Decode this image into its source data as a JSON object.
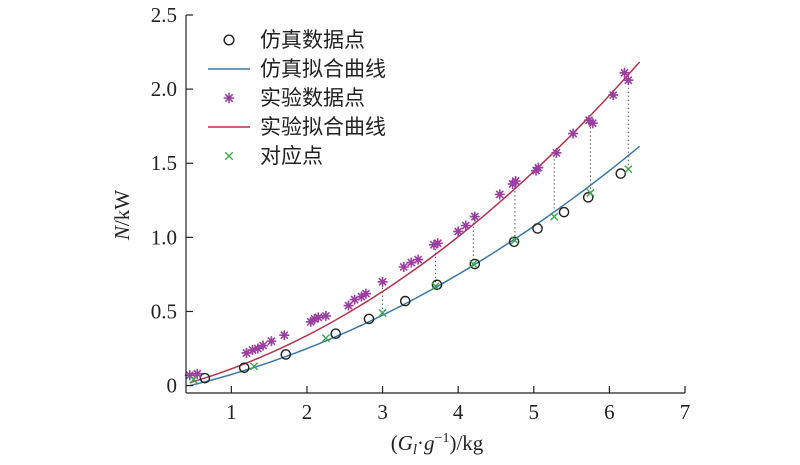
{
  "chart_data": {
    "type": "scatter",
    "xlabel": "(G_l·g^-1)/kg",
    "ylabel": "N/kW",
    "xlim": [
      0.4,
      7
    ],
    "ylim": [
      -0.05,
      2.5
    ],
    "x_ticks": [
      "1",
      "2",
      "3",
      "4",
      "5",
      "6",
      "7"
    ],
    "y_ticks": [
      "0",
      "0.5",
      "1.0",
      "1.5",
      "2.0",
      "2.5"
    ],
    "legend_position": "top-left",
    "series": [
      {
        "name": "仿真数据点",
        "kind": "points",
        "marker": "circle",
        "color": "#222222",
        "points": [
          [
            0.65,
            0.05
          ],
          [
            1.17,
            0.12
          ],
          [
            1.72,
            0.21
          ],
          [
            2.38,
            0.35
          ],
          [
            2.82,
            0.45
          ],
          [
            3.3,
            0.57
          ],
          [
            3.72,
            0.68
          ],
          [
            4.22,
            0.82
          ],
          [
            4.74,
            0.97
          ],
          [
            5.05,
            1.06
          ],
          [
            5.4,
            1.17
          ],
          [
            5.72,
            1.27
          ],
          [
            6.15,
            1.43
          ]
        ]
      },
      {
        "name": "仿真拟合曲线",
        "kind": "curve",
        "color": "#3b78a8",
        "coeffs": [
          -0.05,
          0.1,
          0.025
        ],
        "xrange": [
          0.45,
          6.4
        ]
      },
      {
        "name": "实验数据点",
        "kind": "points",
        "marker": "star",
        "color": "#9b3ea1",
        "points": [
          [
            0.45,
            0.07
          ],
          [
            0.55,
            0.08
          ],
          [
            1.2,
            0.22
          ],
          [
            1.28,
            0.24
          ],
          [
            1.35,
            0.25
          ],
          [
            1.42,
            0.27
          ],
          [
            1.53,
            0.3
          ],
          [
            1.7,
            0.34
          ],
          [
            2.05,
            0.43
          ],
          [
            2.1,
            0.45
          ],
          [
            2.15,
            0.46
          ],
          [
            2.25,
            0.47
          ],
          [
            2.55,
            0.54
          ],
          [
            2.63,
            0.58
          ],
          [
            2.72,
            0.6
          ],
          [
            2.78,
            0.62
          ],
          [
            3.0,
            0.7
          ],
          [
            3.28,
            0.8
          ],
          [
            3.38,
            0.83
          ],
          [
            3.47,
            0.85
          ],
          [
            3.68,
            0.95
          ],
          [
            3.73,
            0.96
          ],
          [
            4.0,
            1.04
          ],
          [
            4.1,
            1.08
          ],
          [
            4.22,
            1.14
          ],
          [
            4.55,
            1.29
          ],
          [
            4.72,
            1.36
          ],
          [
            4.76,
            1.38
          ],
          [
            5.03,
            1.45
          ],
          [
            5.06,
            1.47
          ],
          [
            5.3,
            1.57
          ],
          [
            5.52,
            1.7
          ],
          [
            5.73,
            1.79
          ],
          [
            5.78,
            1.77
          ],
          [
            6.05,
            1.96
          ],
          [
            6.2,
            2.11
          ],
          [
            6.25,
            2.06
          ]
        ]
      },
      {
        "name": "实验拟合曲线",
        "kind": "curve",
        "color": "#b2334a",
        "coeffs": [
          -0.04,
          0.117,
          0.036
        ],
        "xrange": [
          0.45,
          6.4
        ]
      },
      {
        "name": "对应点",
        "kind": "points",
        "marker": "cross",
        "color": "#3aa84a",
        "points": [
          [
            0.5,
            0.04
          ],
          [
            1.3,
            0.13
          ],
          [
            2.25,
            0.32
          ],
          [
            3.0,
            0.49
          ],
          [
            3.7,
            0.67
          ],
          [
            4.2,
            0.82
          ],
          [
            4.75,
            0.98
          ],
          [
            5.27,
            1.14
          ],
          [
            5.75,
            1.3
          ],
          [
            6.25,
            1.46
          ]
        ]
      }
    ],
    "correspondence_lines": [
      {
        "x": 3.0,
        "y_low": 0.49,
        "y_high": 0.69
      },
      {
        "x": 3.7,
        "y_low": 0.67,
        "y_high": 0.95
      },
      {
        "x": 4.2,
        "y_low": 0.82,
        "y_high": 1.14
      },
      {
        "x": 4.75,
        "y_low": 0.98,
        "y_high": 1.36
      },
      {
        "x": 5.27,
        "y_low": 1.14,
        "y_high": 1.57
      },
      {
        "x": 5.75,
        "y_low": 1.3,
        "y_high": 1.79
      },
      {
        "x": 6.25,
        "y_low": 1.46,
        "y_high": 2.06
      }
    ]
  }
}
